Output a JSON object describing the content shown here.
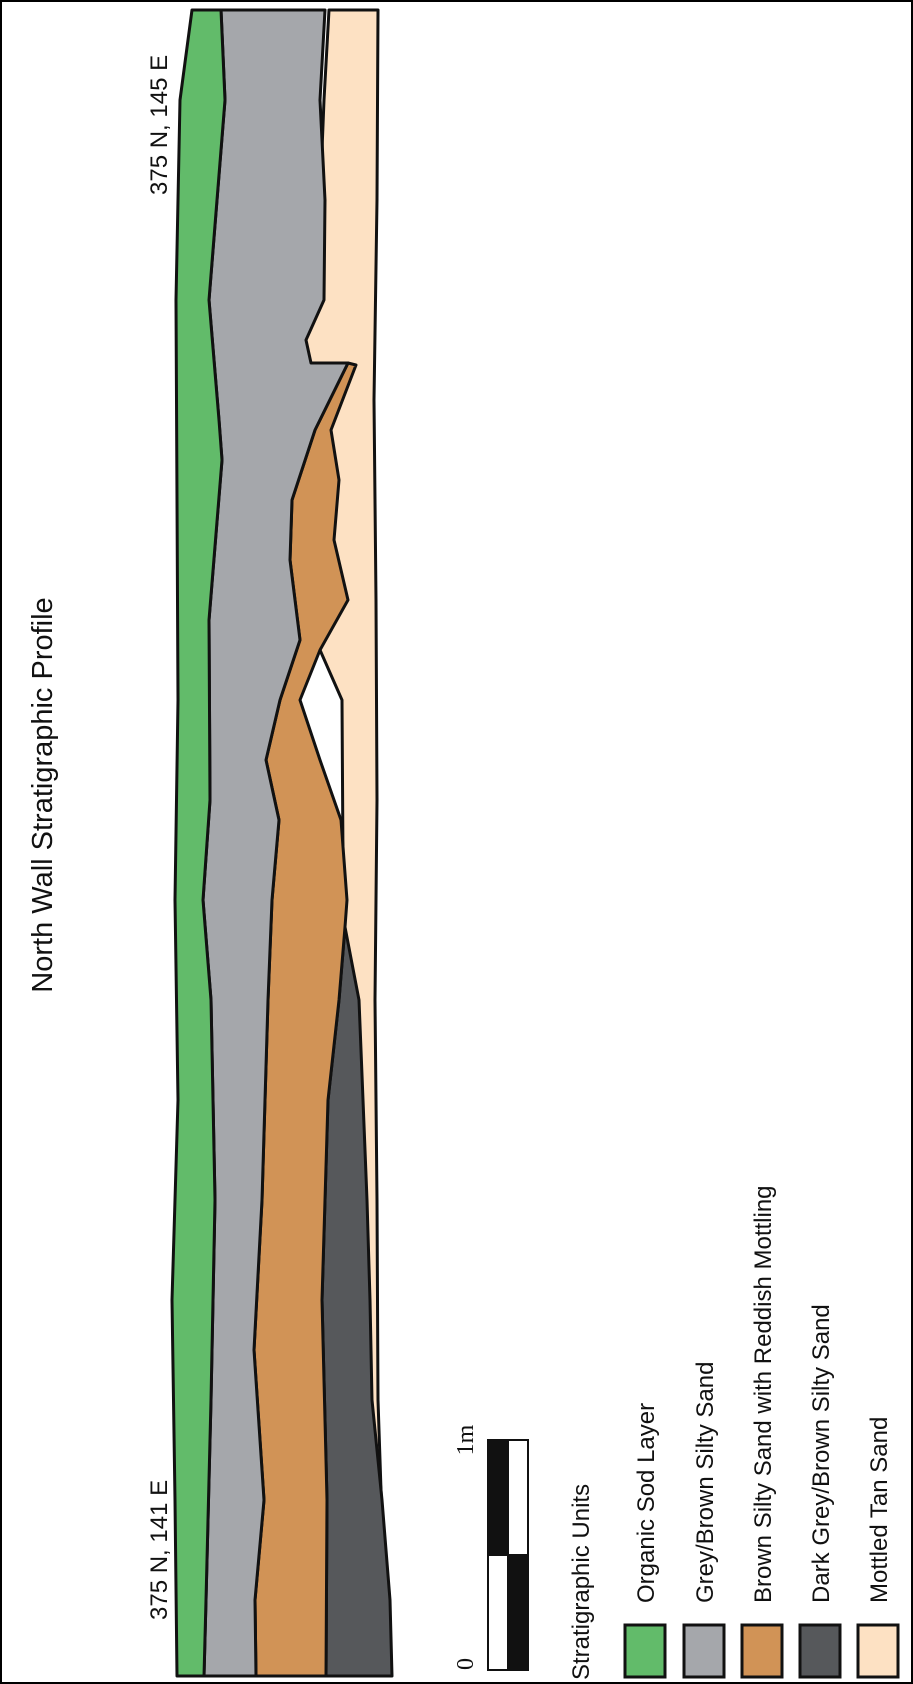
{
  "title": "North Wall Stratigraphic Profile",
  "endpoints": {
    "left": "375 N, 141 E",
    "right": "375 N, 145 E"
  },
  "scale_bar": {
    "start_label": "0",
    "end_label": "1m",
    "length_m": 1,
    "segments": 2
  },
  "legend": {
    "title": "Stratigraphic Units",
    "items": [
      {
        "label": "Organic Sod Layer",
        "color": "#62bb6a"
      },
      {
        "label": "Grey/Brown Silty Sand",
        "color": "#a5a7ab"
      },
      {
        "label": "Brown Silty Sand with Reddish Mottling",
        "color": "#d19356"
      },
      {
        "label": "Dark Grey/Brown Silty Sand",
        "color": "#56585b"
      },
      {
        "label": "Mottled Tan Sand",
        "color": "#fde1c3"
      }
    ]
  },
  "colors": {
    "outline": "#111111",
    "frame": "#000000"
  }
}
